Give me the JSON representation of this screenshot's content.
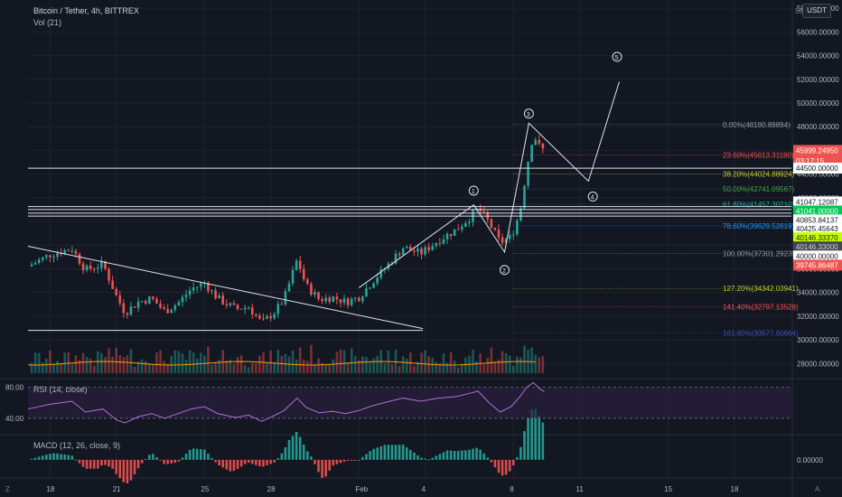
{
  "header": {
    "symbol_title": "Bitcoin / Tether, 4h, BITTREX",
    "volume_label": "Vol (21)",
    "currency_button": "USDT",
    "y_top_label": "58"
  },
  "rsi": {
    "label": "RSI (14, close)",
    "levels": [
      "80.00",
      "40.00"
    ]
  },
  "macd": {
    "label": "MACD (12, 26, close, 9)",
    "zero_label": "0.00000"
  },
  "footer": {
    "left_letter": "Z",
    "right_letter": "A"
  },
  "colors": {
    "background": "#131722",
    "up": "#26a69a",
    "down": "#ef5350",
    "grid": "#1f2330",
    "white_line": "#e0e3eb",
    "rsi_line": "#b46ed6",
    "rsi_band": "#2a1f3d",
    "ma_line": "#ff9800"
  },
  "chart_data": {
    "type": "candlestick",
    "title": "Bitcoin / Tether, 4h, BITTREX",
    "ylim": [
      26800,
      58700
    ],
    "y_ticks": [
      "58000.00000",
      "56000.00000",
      "54000.00000",
      "52000.00000",
      "50000.00000",
      "48000.00000",
      "46000.00000",
      "44000.00000",
      "42000.00000",
      "40000.00000",
      "38000.00000",
      "36000.00000",
      "34000.00000",
      "32000.00000",
      "30000.00000",
      "28000.00000"
    ],
    "x_ticks": [
      {
        "label": "18",
        "day": 18
      },
      {
        "label": "21",
        "day": 21
      },
      {
        "label": "25",
        "day": 25
      },
      {
        "label": "28",
        "day": 28
      },
      {
        "label": "Feb",
        "day": 32
      },
      {
        "label": "4",
        "day": 35
      },
      {
        "label": "8",
        "day": 39
      },
      {
        "label": "11",
        "day": 42
      },
      {
        "label": "15",
        "day": 46
      },
      {
        "label": "18",
        "day": 49
      }
    ],
    "fib_levels": [
      {
        "label": "0.00%(48180.89894)",
        "value": 48180.89894,
        "color": "#9598a1"
      },
      {
        "label": "23.60%(45613.31180)",
        "value": 45613.3118,
        "color": "#ef5350"
      },
      {
        "label": "38.20%(44024.88924)",
        "value": 44024.88924,
        "color": "#c0ca33"
      },
      {
        "label": "50.00%(42741.09567)",
        "value": 42741.09567,
        "color": "#43a047"
      },
      {
        "label": "61.80%(41457.30210)",
        "value": 41457.3021,
        "color": "#26a69a"
      },
      {
        "label": "78.60%(39629.52819)",
        "value": 39629.52819,
        "color": "#2196f3"
      },
      {
        "label": "100.00%(37301.29239)",
        "value": 37301.29239,
        "color": "#9598a1"
      },
      {
        "label": "127.20%(34342.03941)",
        "value": 34342.03941,
        "color": "#c0ca33"
      },
      {
        "label": "141.40%(32797.13528)",
        "value": 32797.13528,
        "color": "#ef5350"
      },
      {
        "label": "161.80%(30577.60664)",
        "value": 30577.60664,
        "color": "#3f51b5"
      }
    ],
    "price_tags": [
      {
        "label": "45999.24950",
        "value": 45999.2495,
        "bg": "#ef5350",
        "fg": "#ffffff"
      },
      {
        "label": "03:17:15",
        "value": 45100,
        "bg": "#ef5350",
        "fg": "#ffffff"
      },
      {
        "label": "44500.00000",
        "value": 44500,
        "bg": "#ffffff",
        "fg": "#131722"
      },
      {
        "label": "41047.12087",
        "value": 41650,
        "bg": "#ffffff",
        "fg": "#131722"
      },
      {
        "label": "41041.00000",
        "value": 40880,
        "bg": "#00c853",
        "fg": "#ffffff"
      },
      {
        "label": "40853.84137",
        "value": 40130,
        "bg": "#ffffff",
        "fg": "#131722"
      },
      {
        "label": "40425.45643",
        "value": 39380,
        "bg": "#ffffff",
        "fg": "#131722"
      },
      {
        "label": "40146.33370",
        "value": 38620,
        "bg": "#c6ff00",
        "fg": "#131722"
      },
      {
        "label": "40146.33000",
        "value": 37850,
        "bg": "#434651",
        "fg": "#d1d4dc"
      },
      {
        "label": "40000.00000",
        "value": 37080,
        "bg": "#ffffff",
        "fg": "#131722"
      },
      {
        "label": "39745.86487",
        "value": 36310,
        "bg": "#ef5350",
        "fg": "#ffffff"
      }
    ],
    "wave_labels": [
      {
        "label": "1",
        "day": 37.2,
        "y": 42600
      },
      {
        "label": "2",
        "day": 38.6,
        "y": 35900
      },
      {
        "label": "3",
        "day": 39.7,
        "y": 49100
      },
      {
        "label": "4",
        "day": 42.6,
        "y": 42100
      },
      {
        "label": "5",
        "day": 43.7,
        "y": 53900
      }
    ],
    "wave_path": [
      {
        "day": 32.0,
        "y": 34400
      },
      {
        "day": 37.2,
        "y": 41400
      },
      {
        "day": 38.6,
        "y": 37400
      },
      {
        "day": 39.7,
        "y": 48300
      },
      {
        "day": 42.4,
        "y": 43400
      },
      {
        "day": 43.8,
        "y": 51800
      }
    ],
    "horizontal_lines": [
      {
        "y": 44500,
        "from_day": 17.0,
        "to_day": 53
      },
      {
        "y": 41250,
        "from_day": 17.0,
        "to_day": 53
      },
      {
        "y": 41000,
        "from_day": 17.0,
        "to_day": 53
      },
      {
        "y": 40700,
        "from_day": 17.0,
        "to_day": 53
      },
      {
        "y": 40450,
        "from_day": 17.0,
        "to_day": 53
      },
      {
        "y": 30800,
        "from_day": 17.0,
        "to_day": 34.9
      }
    ],
    "trendline": [
      {
        "day": 17.0,
        "y": 37900
      },
      {
        "day": 34.9,
        "y": 30950
      }
    ],
    "price_path": [
      {
        "day": 17.0,
        "y": 36200
      },
      {
        "day": 18.0,
        "y": 37200
      },
      {
        "day": 19.0,
        "y": 37700
      },
      {
        "day": 19.6,
        "y": 35900
      },
      {
        "day": 20.4,
        "y": 36400
      },
      {
        "day": 21.0,
        "y": 33700
      },
      {
        "day": 21.4,
        "y": 32300
      },
      {
        "day": 22.0,
        "y": 33200
      },
      {
        "day": 22.6,
        "y": 33500
      },
      {
        "day": 23.2,
        "y": 32400
      },
      {
        "day": 23.8,
        "y": 33100
      },
      {
        "day": 24.4,
        "y": 34300
      },
      {
        "day": 25.0,
        "y": 34800
      },
      {
        "day": 25.6,
        "y": 33500
      },
      {
        "day": 26.4,
        "y": 32600
      },
      {
        "day": 27.0,
        "y": 32800
      },
      {
        "day": 27.6,
        "y": 31400
      },
      {
        "day": 28.2,
        "y": 32400
      },
      {
        "day": 28.6,
        "y": 33400
      },
      {
        "day": 29.2,
        "y": 36800
      },
      {
        "day": 29.6,
        "y": 34600
      },
      {
        "day": 30.2,
        "y": 33400
      },
      {
        "day": 30.8,
        "y": 33600
      },
      {
        "day": 31.4,
        "y": 33200
      },
      {
        "day": 32.0,
        "y": 33600
      },
      {
        "day": 32.6,
        "y": 34900
      },
      {
        "day": 33.4,
        "y": 36500
      },
      {
        "day": 34.0,
        "y": 37800
      },
      {
        "day": 34.8,
        "y": 37300
      },
      {
        "day": 35.6,
        "y": 38400
      },
      {
        "day": 36.4,
        "y": 39300
      },
      {
        "day": 37.0,
        "y": 40300
      },
      {
        "day": 37.4,
        "y": 41100
      },
      {
        "day": 37.9,
        "y": 39900
      },
      {
        "day": 38.4,
        "y": 38200
      },
      {
        "day": 38.9,
        "y": 38700
      },
      {
        "day": 39.3,
        "y": 40800
      },
      {
        "day": 39.6,
        "y": 44500
      },
      {
        "day": 39.9,
        "y": 47400
      },
      {
        "day": 40.2,
        "y": 46200
      },
      {
        "day": 40.4,
        "y": 45999
      }
    ],
    "rsi_ylim": [
      20,
      90
    ],
    "rsi_path": [
      {
        "day": 17.0,
        "y": 52
      },
      {
        "day": 18.0,
        "y": 58
      },
      {
        "day": 19.0,
        "y": 62
      },
      {
        "day": 19.6,
        "y": 48
      },
      {
        "day": 20.4,
        "y": 52
      },
      {
        "day": 21.0,
        "y": 38
      },
      {
        "day": 21.4,
        "y": 34
      },
      {
        "day": 22.0,
        "y": 42
      },
      {
        "day": 22.6,
        "y": 46
      },
      {
        "day": 23.2,
        "y": 40
      },
      {
        "day": 23.8,
        "y": 46
      },
      {
        "day": 24.4,
        "y": 52
      },
      {
        "day": 25.0,
        "y": 55
      },
      {
        "day": 25.6,
        "y": 46
      },
      {
        "day": 26.4,
        "y": 41
      },
      {
        "day": 27.0,
        "y": 44
      },
      {
        "day": 27.6,
        "y": 36
      },
      {
        "day": 28.2,
        "y": 44
      },
      {
        "day": 28.6,
        "y": 50
      },
      {
        "day": 29.2,
        "y": 66
      },
      {
        "day": 29.6,
        "y": 54
      },
      {
        "day": 30.2,
        "y": 47
      },
      {
        "day": 30.8,
        "y": 49
      },
      {
        "day": 31.4,
        "y": 46
      },
      {
        "day": 32.0,
        "y": 50
      },
      {
        "day": 32.6,
        "y": 56
      },
      {
        "day": 33.4,
        "y": 62
      },
      {
        "day": 34.0,
        "y": 66
      },
      {
        "day": 34.8,
        "y": 62
      },
      {
        "day": 35.6,
        "y": 66
      },
      {
        "day": 36.4,
        "y": 68
      },
      {
        "day": 37.0,
        "y": 72
      },
      {
        "day": 37.4,
        "y": 75
      },
      {
        "day": 37.9,
        "y": 60
      },
      {
        "day": 38.4,
        "y": 48
      },
      {
        "day": 38.9,
        "y": 55
      },
      {
        "day": 39.3,
        "y": 68
      },
      {
        "day": 39.6,
        "y": 80
      },
      {
        "day": 39.9,
        "y": 86
      },
      {
        "day": 40.2,
        "y": 78
      },
      {
        "day": 40.4,
        "y": 74
      }
    ],
    "macd_ylim": [
      -1000,
      1400
    ]
  }
}
